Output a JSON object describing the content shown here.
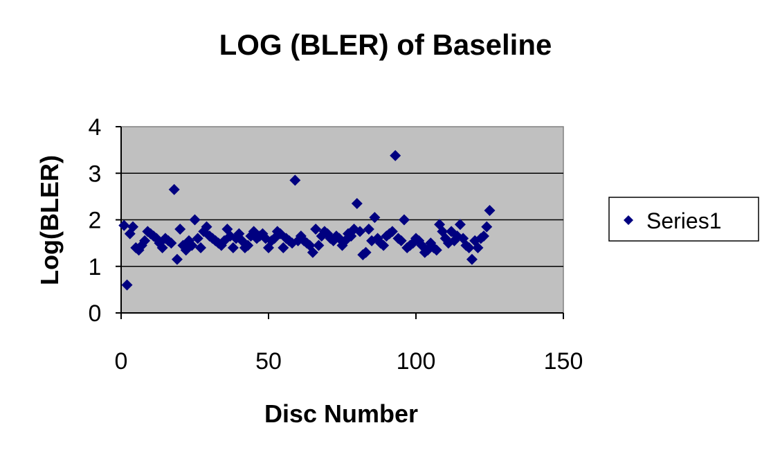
{
  "chart_data": {
    "type": "scatter",
    "title": "LOG (BLER) of Baseline",
    "xlabel": "Disc Number",
    "ylabel": "Log(BLER)",
    "xlim": [
      0,
      150
    ],
    "ylim": [
      0,
      4
    ],
    "xticks": [
      0,
      50,
      100,
      150
    ],
    "yticks": [
      0,
      1,
      2,
      3,
      4
    ],
    "grid": "horizontal major gridlines",
    "plot_background": "#c0c0c0",
    "marker": "diamond",
    "marker_color": "#000080",
    "legend_position": "right",
    "series": [
      {
        "name": "Series1",
        "x": [
          1,
          2,
          3,
          4,
          5,
          6,
          7,
          8,
          9,
          10,
          11,
          12,
          13,
          14,
          15,
          16,
          17,
          18,
          19,
          20,
          21,
          22,
          23,
          24,
          25,
          26,
          27,
          28,
          29,
          30,
          31,
          32,
          33,
          34,
          35,
          36,
          37,
          38,
          39,
          40,
          41,
          42,
          43,
          44,
          45,
          46,
          47,
          48,
          49,
          50,
          51,
          52,
          53,
          54,
          55,
          56,
          57,
          58,
          59,
          60,
          61,
          62,
          63,
          64,
          65,
          66,
          67,
          68,
          69,
          70,
          71,
          72,
          73,
          74,
          75,
          76,
          77,
          78,
          79,
          80,
          81,
          82,
          83,
          84,
          85,
          86,
          87,
          88,
          89,
          90,
          91,
          92,
          93,
          94,
          95,
          96,
          97,
          98,
          99,
          100,
          101,
          102,
          103,
          104,
          105,
          106,
          107,
          108,
          109,
          110,
          111,
          112,
          113,
          114,
          115,
          116,
          117,
          118,
          119,
          120,
          121,
          122,
          123,
          124,
          125
        ],
        "y": [
          1.88,
          0.6,
          1.7,
          1.85,
          1.4,
          1.35,
          1.45,
          1.55,
          1.75,
          1.7,
          1.65,
          1.6,
          1.5,
          1.4,
          1.6,
          1.55,
          1.5,
          2.65,
          1.15,
          1.8,
          1.45,
          1.35,
          1.55,
          1.45,
          2.0,
          1.6,
          1.4,
          1.75,
          1.85,
          1.65,
          1.6,
          1.55,
          1.5,
          1.45,
          1.55,
          1.8,
          1.65,
          1.4,
          1.6,
          1.7,
          1.55,
          1.4,
          1.45,
          1.65,
          1.75,
          1.6,
          1.65,
          1.7,
          1.6,
          1.4,
          1.55,
          1.6,
          1.75,
          1.7,
          1.4,
          1.6,
          1.55,
          1.5,
          2.85,
          1.55,
          1.65,
          1.55,
          1.5,
          1.45,
          1.3,
          1.8,
          1.45,
          1.65,
          1.75,
          1.7,
          1.6,
          1.55,
          1.65,
          1.6,
          1.45,
          1.55,
          1.7,
          1.65,
          1.8,
          2.35,
          1.75,
          1.25,
          1.3,
          1.8,
          1.55,
          2.05,
          1.6,
          1.5,
          1.45,
          1.65,
          1.7,
          1.75,
          3.38,
          1.6,
          1.55,
          2.0,
          1.4,
          1.45,
          1.5,
          1.6,
          1.55,
          1.45,
          1.3,
          1.35,
          1.5,
          1.4,
          1.35,
          1.9,
          1.75,
          1.6,
          1.5,
          1.75,
          1.55,
          1.65,
          1.9,
          1.6,
          1.45,
          1.4,
          1.15,
          1.55,
          1.4,
          1.6,
          1.65,
          1.85,
          2.2
        ]
      }
    ]
  }
}
